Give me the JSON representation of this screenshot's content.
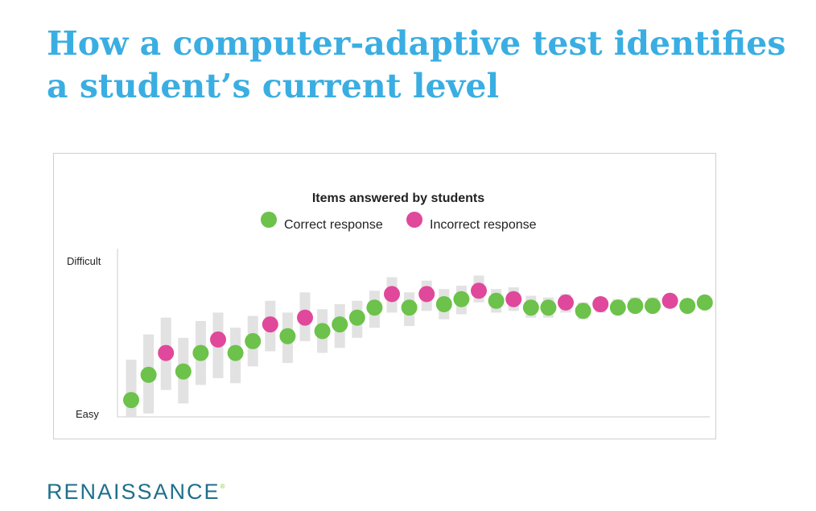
{
  "title_line1": "How a computer-adaptive test identifies",
  "title_line2": "a student’s current level",
  "logo_text": "RENAISSANCE",
  "logo_mark": "®",
  "colors": {
    "title": "#3aaee2",
    "correct": "#6cc24a",
    "incorrect": "#e0489b",
    "range_bar": "#e2e2e2",
    "axis": "#cccccc",
    "logo": "#1f6f8b"
  },
  "chart_data": {
    "type": "scatter",
    "title": "Items answered by students",
    "legend": {
      "placement": "top-center",
      "correct_label": "Correct response",
      "incorrect_label": "Incorrect response"
    },
    "y_axis": {
      "top_label": "Difficult",
      "bottom_label": "Easy",
      "ylim": [
        0,
        100
      ]
    },
    "grid": false,
    "items": [
      {
        "n": 1,
        "difficulty": 10,
        "result": "correct",
        "range": [
          0,
          34
        ]
      },
      {
        "n": 2,
        "difficulty": 25,
        "result": "correct",
        "range": [
          2,
          49
        ]
      },
      {
        "n": 3,
        "difficulty": 38,
        "result": "incorrect",
        "range": [
          16,
          59
        ]
      },
      {
        "n": 4,
        "difficulty": 27,
        "result": "correct",
        "range": [
          8,
          47
        ]
      },
      {
        "n": 5,
        "difficulty": 38,
        "result": "correct",
        "range": [
          19,
          57
        ]
      },
      {
        "n": 6,
        "difficulty": 46,
        "result": "incorrect",
        "range": [
          23,
          62
        ]
      },
      {
        "n": 7,
        "difficulty": 38,
        "result": "correct",
        "range": [
          20,
          53
        ]
      },
      {
        "n": 8,
        "difficulty": 45,
        "result": "correct",
        "range": [
          30,
          60
        ]
      },
      {
        "n": 9,
        "difficulty": 55,
        "result": "incorrect",
        "range": [
          39,
          69
        ]
      },
      {
        "n": 10,
        "difficulty": 48,
        "result": "correct",
        "range": [
          32,
          62
        ]
      },
      {
        "n": 11,
        "difficulty": 59,
        "result": "incorrect",
        "range": [
          45,
          74
        ]
      },
      {
        "n": 12,
        "difficulty": 51,
        "result": "correct",
        "range": [
          38,
          64
        ]
      },
      {
        "n": 13,
        "difficulty": 55,
        "result": "correct",
        "range": [
          41,
          67
        ]
      },
      {
        "n": 14,
        "difficulty": 59,
        "result": "correct",
        "range": [
          47,
          69
        ]
      },
      {
        "n": 15,
        "difficulty": 65,
        "result": "correct",
        "range": [
          53,
          75
        ]
      },
      {
        "n": 16,
        "difficulty": 73,
        "result": "incorrect",
        "range": [
          62,
          83
        ]
      },
      {
        "n": 17,
        "difficulty": 65,
        "result": "correct",
        "range": [
          54,
          74
        ]
      },
      {
        "n": 18,
        "difficulty": 73,
        "result": "incorrect",
        "range": [
          63,
          81
        ]
      },
      {
        "n": 19,
        "difficulty": 67,
        "result": "correct",
        "range": [
          58,
          76
        ]
      },
      {
        "n": 20,
        "difficulty": 70,
        "result": "correct",
        "range": [
          61,
          78
        ]
      },
      {
        "n": 21,
        "difficulty": 75,
        "result": "incorrect",
        "range": [
          68,
          84
        ]
      },
      {
        "n": 22,
        "difficulty": 69,
        "result": "correct",
        "range": [
          62,
          76
        ]
      },
      {
        "n": 23,
        "difficulty": 70,
        "result": "incorrect",
        "range": [
          63,
          77
        ]
      },
      {
        "n": 24,
        "difficulty": 65,
        "result": "correct",
        "range": [
          59,
          72
        ]
      },
      {
        "n": 25,
        "difficulty": 65,
        "result": "correct",
        "range": [
          59,
          71
        ]
      },
      {
        "n": 26,
        "difficulty": 68,
        "result": "incorrect",
        "range": [
          62,
          73
        ]
      },
      {
        "n": 27,
        "difficulty": 63,
        "result": "correct",
        "range": [
          58,
          68
        ]
      },
      {
        "n": 28,
        "difficulty": 67,
        "result": "incorrect",
        "range": [
          62,
          71
        ]
      },
      {
        "n": 29,
        "difficulty": 65,
        "result": "correct",
        "range": [
          61,
          70
        ]
      },
      {
        "n": 30,
        "difficulty": 66,
        "result": "correct",
        "range": [
          62,
          71
        ]
      },
      {
        "n": 31,
        "difficulty": 66,
        "result": "correct",
        "range": [
          62,
          71
        ]
      },
      {
        "n": 32,
        "difficulty": 69,
        "result": "incorrect",
        "range": [
          65,
          72
        ]
      },
      {
        "n": 33,
        "difficulty": 66,
        "result": "correct",
        "range": [
          63,
          69
        ]
      },
      {
        "n": 34,
        "difficulty": 68,
        "result": "correct",
        "range": [
          66,
          70
        ]
      }
    ]
  }
}
